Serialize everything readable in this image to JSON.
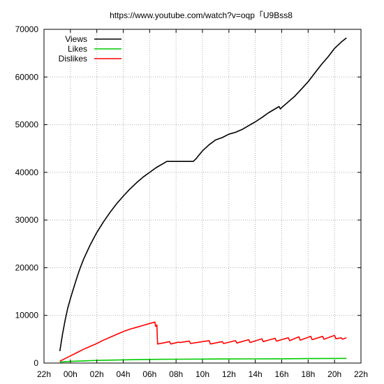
{
  "chart_data": {
    "type": "line",
    "title": "https://www.youtube.com/watch?v=oqp「U9Bss8",
    "xlabel": "",
    "ylabel": "",
    "x_tick_labels": [
      "22h",
      "00h",
      "02h",
      "04h",
      "06h",
      "08h",
      "10h",
      "12h",
      "14h",
      "16h",
      "18h",
      "20h",
      "22h"
    ],
    "xlim_hours": [
      -2,
      22
    ],
    "ylim": [
      0,
      70000
    ],
    "y_ticks": [
      0,
      10000,
      20000,
      30000,
      40000,
      50000,
      60000,
      70000
    ],
    "grid": true,
    "legend_position": "top-left",
    "series": [
      {
        "name": "Views",
        "color": "#000000",
        "points": [
          [
            -0.8,
            2500
          ],
          [
            -0.6,
            6000
          ],
          [
            -0.4,
            9000
          ],
          [
            -0.2,
            11500
          ],
          [
            0,
            13500
          ],
          [
            0.25,
            15800
          ],
          [
            0.5,
            18000
          ],
          [
            0.75,
            20000
          ],
          [
            1,
            21800
          ],
          [
            1.5,
            24800
          ],
          [
            2,
            27400
          ],
          [
            2.5,
            29600
          ],
          [
            3,
            31600
          ],
          [
            3.5,
            33400
          ],
          [
            4,
            35000
          ],
          [
            4.5,
            36500
          ],
          [
            5,
            37800
          ],
          [
            5.5,
            39000
          ],
          [
            6,
            40000
          ],
          [
            6.5,
            41000
          ],
          [
            7,
            41800
          ],
          [
            7.3,
            42300
          ],
          [
            8,
            42300
          ],
          [
            9,
            42300
          ],
          [
            9.3,
            42300
          ],
          [
            9.5,
            42800
          ],
          [
            9.7,
            43500
          ],
          [
            10,
            44500
          ],
          [
            10.5,
            45800
          ],
          [
            11,
            46800
          ],
          [
            11.5,
            47300
          ],
          [
            12,
            48000
          ],
          [
            12.5,
            48400
          ],
          [
            13,
            49000
          ],
          [
            13.5,
            49800
          ],
          [
            14,
            50600
          ],
          [
            14.5,
            51500
          ],
          [
            15,
            52500
          ],
          [
            15.5,
            53300
          ],
          [
            15.8,
            53800
          ],
          [
            15.9,
            53300
          ],
          [
            16,
            53600
          ],
          [
            16.5,
            54800
          ],
          [
            17,
            56000
          ],
          [
            17.5,
            57500
          ],
          [
            18,
            59000
          ],
          [
            18.5,
            60800
          ],
          [
            19,
            62600
          ],
          [
            19.5,
            64200
          ],
          [
            20,
            66000
          ],
          [
            20.5,
            67300
          ],
          [
            20.9,
            68200
          ]
        ]
      },
      {
        "name": "Likes",
        "color": "#00cc00",
        "points": [
          [
            -0.8,
            200
          ],
          [
            0,
            350
          ],
          [
            1,
            450
          ],
          [
            2,
            550
          ],
          [
            3,
            620
          ],
          [
            4,
            680
          ],
          [
            5,
            720
          ],
          [
            6,
            760
          ],
          [
            7,
            790
          ],
          [
            8,
            810
          ],
          [
            10,
            830
          ],
          [
            12,
            860
          ],
          [
            14,
            880
          ],
          [
            16,
            900
          ],
          [
            18,
            930
          ],
          [
            20,
            960
          ],
          [
            20.9,
            980
          ]
        ]
      },
      {
        "name": "Dislikes",
        "color": "#ff0000",
        "points": [
          [
            -0.8,
            400
          ],
          [
            0,
            1500
          ],
          [
            0.5,
            2200
          ],
          [
            1,
            2900
          ],
          [
            1.5,
            3500
          ],
          [
            2,
            4100
          ],
          [
            2.5,
            4800
          ],
          [
            3,
            5400
          ],
          [
            3.5,
            6000
          ],
          [
            4,
            6600
          ],
          [
            4.5,
            7100
          ],
          [
            5,
            7500
          ],
          [
            5.5,
            7900
          ],
          [
            6,
            8300
          ],
          [
            6.4,
            8600
          ],
          [
            6.45,
            7700
          ],
          [
            6.55,
            8000
          ],
          [
            6.6,
            4000
          ],
          [
            7,
            4200
          ],
          [
            7.5,
            4500
          ],
          [
            7.6,
            4000
          ],
          [
            8.2,
            4400
          ],
          [
            8.3,
            4300
          ],
          [
            9.0,
            4600
          ],
          [
            9.1,
            4100
          ],
          [
            10,
            4500
          ],
          [
            10.5,
            4700
          ],
          [
            10.6,
            4000
          ],
          [
            11.5,
            4500
          ],
          [
            11.6,
            4100
          ],
          [
            12.5,
            4700
          ],
          [
            12.6,
            4200
          ],
          [
            13.5,
            4900
          ],
          [
            13.6,
            4300
          ],
          [
            14.5,
            5100
          ],
          [
            14.6,
            4500
          ],
          [
            15.5,
            5200
          ],
          [
            15.6,
            4600
          ],
          [
            16.5,
            5300
          ],
          [
            16.6,
            4700
          ],
          [
            17.3,
            5500
          ],
          [
            17.4,
            4800
          ],
          [
            18.2,
            5600
          ],
          [
            18.3,
            4900
          ],
          [
            19.1,
            5600
          ],
          [
            19.2,
            5000
          ],
          [
            20.0,
            5800
          ],
          [
            20.1,
            5100
          ],
          [
            20.5,
            5300
          ],
          [
            20.6,
            5000
          ],
          [
            20.9,
            5300
          ]
        ]
      }
    ]
  }
}
